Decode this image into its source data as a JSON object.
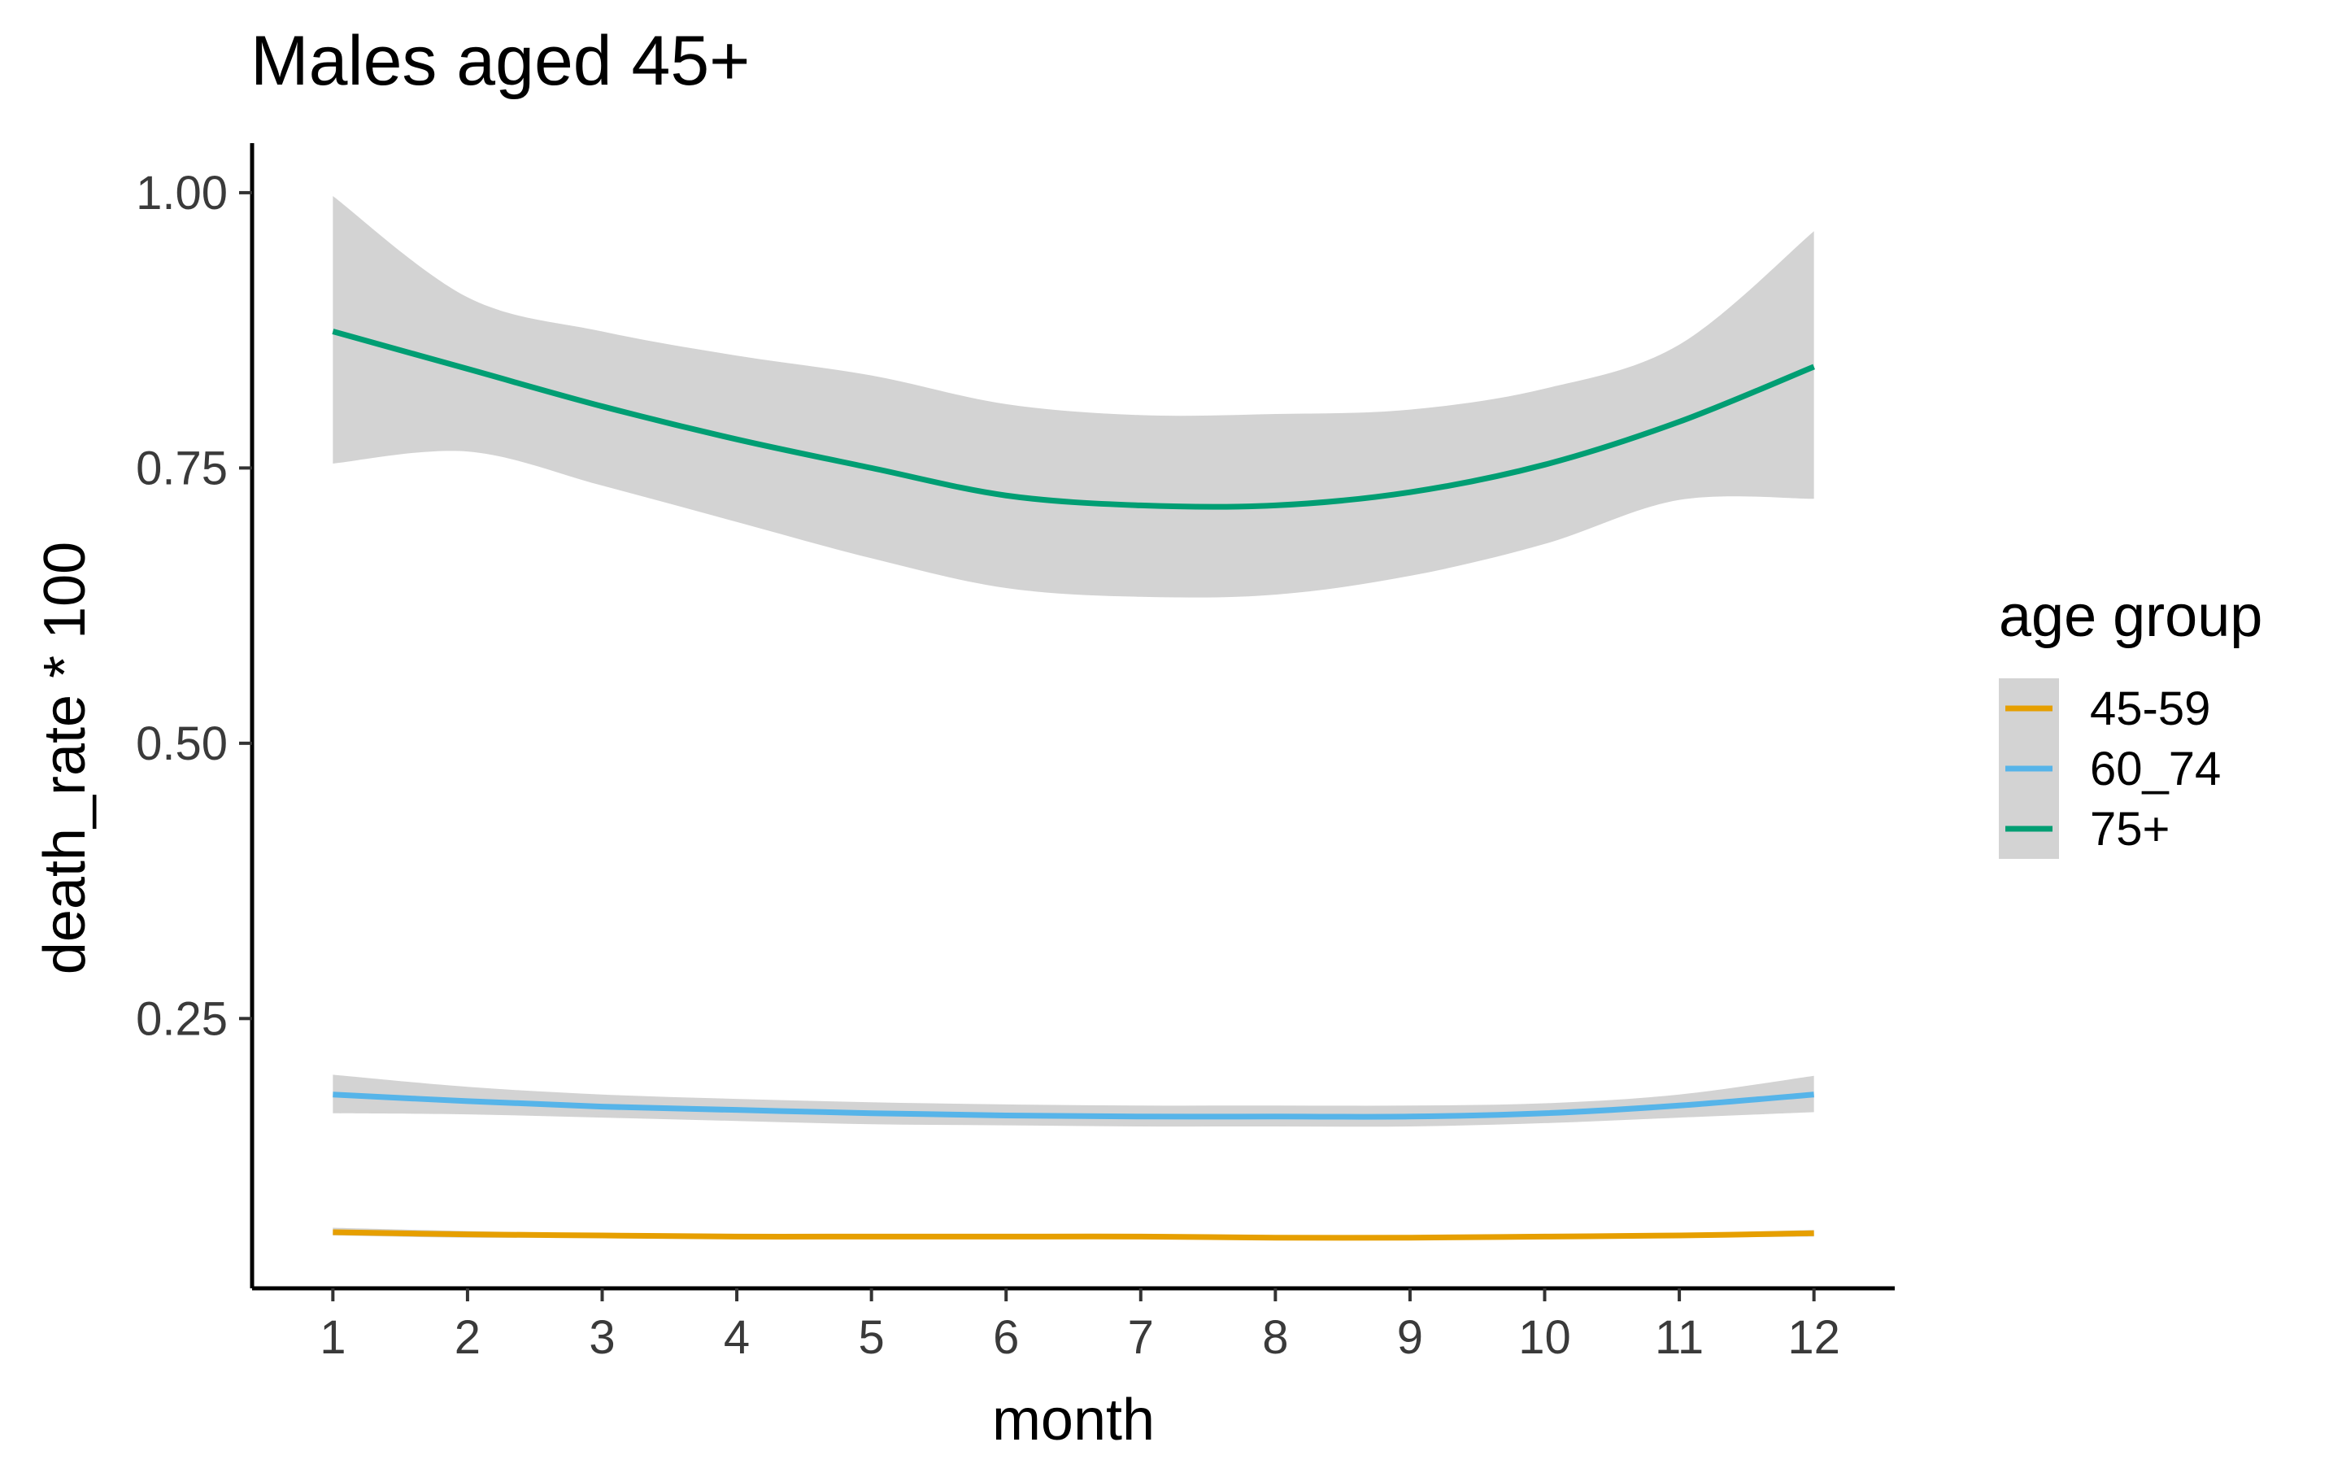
{
  "chart_data": {
    "type": "line",
    "title": "Males aged 45+",
    "xlabel": "month",
    "ylabel": "death_rate * 100",
    "x": [
      1,
      2,
      3,
      4,
      5,
      6,
      7,
      8,
      9,
      10,
      11,
      12
    ],
    "x_ticks": [
      "1",
      "2",
      "3",
      "4",
      "5",
      "6",
      "7",
      "8",
      "9",
      "10",
      "11",
      "12"
    ],
    "xlim": [
      0.4,
      12.6
    ],
    "y_ticks": [
      0.25,
      0.5,
      0.75,
      1.0
    ],
    "y_tick_labels": [
      "0.25",
      "0.50",
      "0.75",
      "1.00"
    ],
    "ylim": [
      0.005,
      1.045
    ],
    "grid": false,
    "confidence_band_color": "#d3d3d3",
    "legend": {
      "title": "age group",
      "position": "right"
    },
    "series": [
      {
        "name": "45-59",
        "color": "#E69F00",
        "values": [
          0.056,
          0.054,
          0.053,
          0.052,
          0.052,
          0.052,
          0.052,
          0.051,
          0.051,
          0.052,
          0.053,
          0.055
        ],
        "lower": [
          0.053,
          0.051,
          0.051,
          0.05,
          0.05,
          0.05,
          0.05,
          0.049,
          0.049,
          0.05,
          0.051,
          0.052
        ],
        "upper": [
          0.06,
          0.057,
          0.055,
          0.054,
          0.054,
          0.054,
          0.054,
          0.053,
          0.053,
          0.054,
          0.055,
          0.058
        ]
      },
      {
        "name": "60_74",
        "color": "#56B4E9",
        "values": [
          0.181,
          0.175,
          0.17,
          0.167,
          0.164,
          0.162,
          0.161,
          0.161,
          0.161,
          0.164,
          0.171,
          0.181
        ],
        "lower": [
          0.164,
          0.163,
          0.16,
          0.157,
          0.154,
          0.153,
          0.152,
          0.152,
          0.152,
          0.155,
          0.16,
          0.165
        ],
        "upper": [
          0.199,
          0.188,
          0.181,
          0.177,
          0.174,
          0.172,
          0.171,
          0.171,
          0.171,
          0.173,
          0.181,
          0.198
        ]
      },
      {
        "name": "75+",
        "color": "#009E73",
        "values": [
          0.874,
          0.84,
          0.806,
          0.776,
          0.75,
          0.725,
          0.716,
          0.716,
          0.728,
          0.753,
          0.792,
          0.842
        ],
        "lower": [
          0.754,
          0.765,
          0.734,
          0.701,
          0.668,
          0.641,
          0.633,
          0.635,
          0.652,
          0.681,
          0.721,
          0.722
        ],
        "upper": [
          0.997,
          0.905,
          0.874,
          0.852,
          0.834,
          0.808,
          0.798,
          0.799,
          0.803,
          0.822,
          0.862,
          0.965
        ]
      }
    ]
  }
}
